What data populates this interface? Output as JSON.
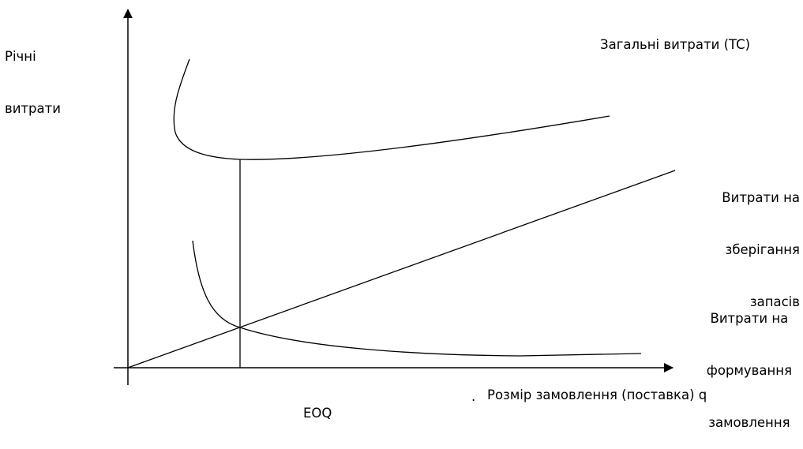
{
  "y_axis_label": [
    "Річні",
    "витрати"
  ],
  "x_axis_label": "Розмір замовлення (поставка) q",
  "x_axis_dot": ".",
  "eoq_label": "EOQ",
  "curves": {
    "total_cost": {
      "label": "Загальні витрати (TC)"
    },
    "holding_cost": {
      "label": [
        "Витрати на",
        "зберігання",
        "запасів"
      ]
    },
    "ordering_cost": {
      "label": [
        "Витрати на",
        "формування",
        "замовлення"
      ]
    }
  },
  "colors": {
    "stroke": "#000000",
    "background": "#ffffff"
  }
}
